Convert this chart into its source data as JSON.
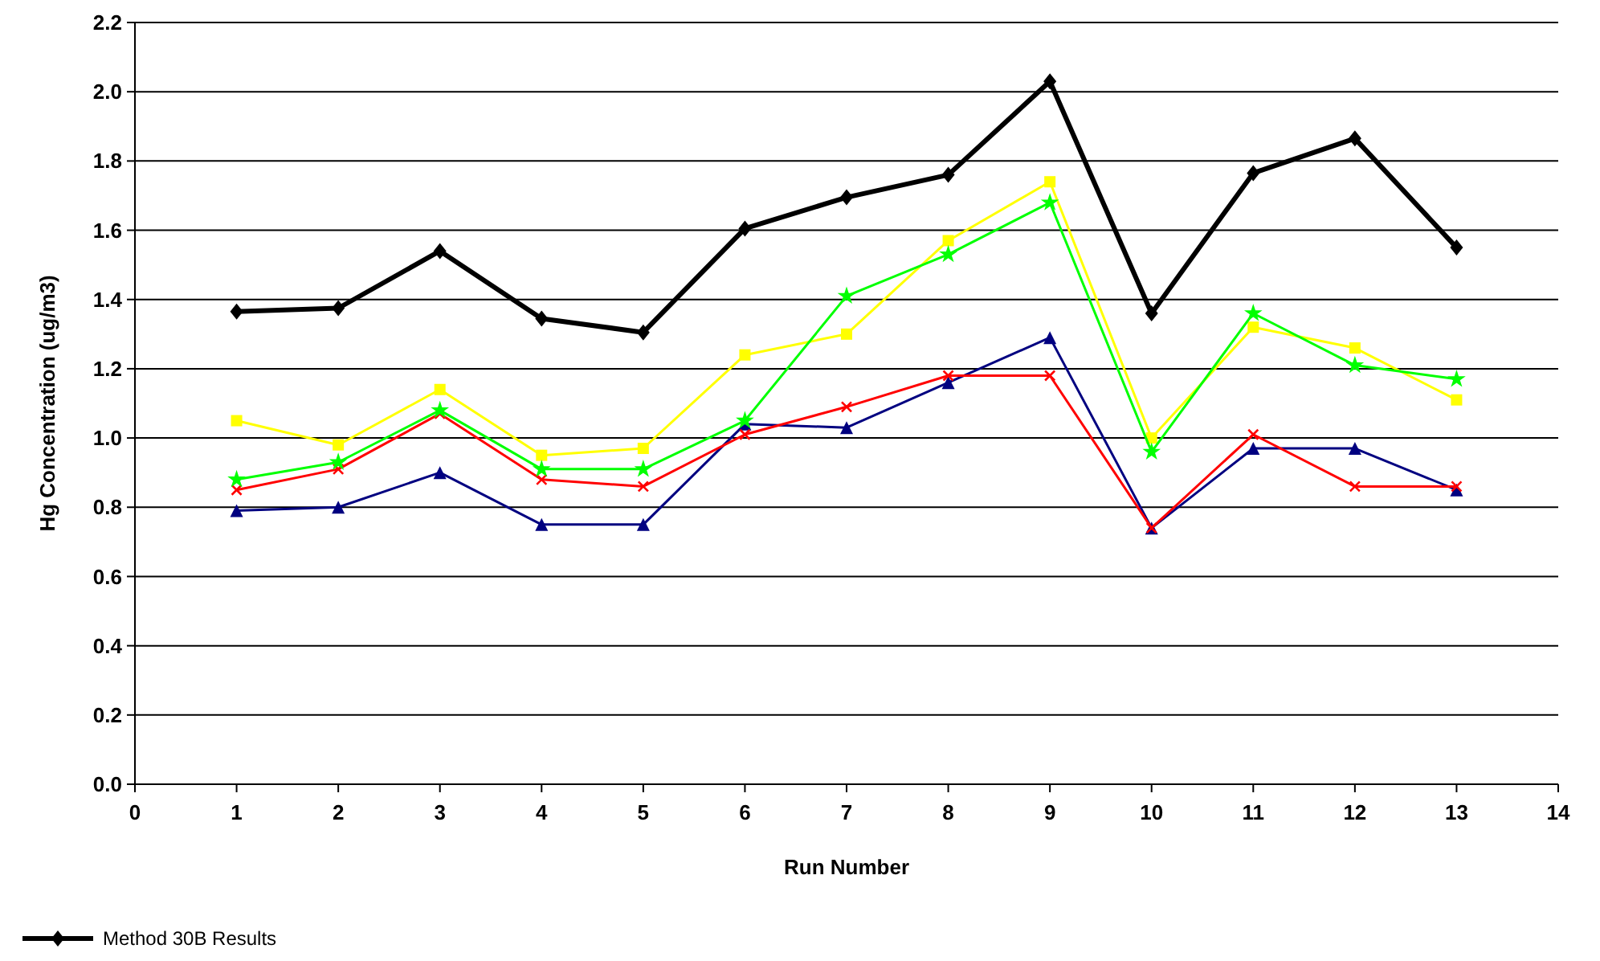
{
  "chart_data": {
    "type": "line",
    "xlabel": "Run Number",
    "ylabel": "Hg Concentration (ug/m3)",
    "x": [
      1,
      2,
      3,
      4,
      5,
      6,
      7,
      8,
      9,
      10,
      11,
      12,
      13
    ],
    "xlim": [
      0,
      14
    ],
    "xticks": [
      0,
      1,
      2,
      3,
      4,
      5,
      6,
      7,
      8,
      9,
      10,
      11,
      12,
      13,
      14
    ],
    "ylim": [
      0,
      2.2
    ],
    "yticks": [
      {
        "value": 0,
        "label": "0.0"
      },
      {
        "value": 0.2,
        "label": "0.2"
      },
      {
        "value": 0.4,
        "label": "0.4"
      },
      {
        "value": 0.6,
        "label": "0.6"
      },
      {
        "value": 0.8,
        "label": "0.8"
      },
      {
        "value": 1,
        "label": "1.0"
      },
      {
        "value": 1.2,
        "label": "1.2"
      },
      {
        "value": 1.4,
        "label": "1.4"
      },
      {
        "value": 1.6,
        "label": "1.6"
      },
      {
        "value": 1.8,
        "label": "1.8"
      },
      {
        "value": 2,
        "label": "2.0"
      },
      {
        "value": 2.2,
        "label": "2.2"
      }
    ],
    "grid": "y",
    "legend": "bottom",
    "series": [
      {
        "name": "Method 30B Results",
        "color": "#000000",
        "marker": "diamond",
        "values": [
          1.365,
          1.375,
          1.54,
          1.345,
          1.305,
          1.605,
          1.695,
          1.76,
          2.03,
          1.36,
          1.765,
          1.865,
          1.55
        ]
      },
      {
        "color": "#000080",
        "marker": "triangle",
        "values": [
          0.79,
          0.8,
          0.9,
          0.75,
          0.75,
          1.04,
          1.03,
          1.16,
          1.29,
          0.74,
          0.97,
          0.97,
          0.85
        ]
      },
      {
        "color": "#ffff00",
        "marker": "square",
        "values": [
          1.05,
          0.98,
          1.14,
          0.95,
          0.97,
          1.24,
          1.3,
          1.57,
          1.74,
          1.0,
          1.32,
          1.26,
          1.11
        ]
      },
      {
        "color": "#ff0000",
        "marker": "cross",
        "values": [
          0.85,
          0.91,
          1.07,
          0.88,
          0.86,
          1.01,
          1.09,
          1.18,
          1.18,
          0.74,
          1.01,
          0.86,
          0.86
        ]
      },
      {
        "color": "#00ff00",
        "marker": "star",
        "values": [
          0.88,
          0.93,
          1.08,
          0.91,
          0.91,
          1.05,
          1.41,
          1.53,
          1.68,
          0.96,
          1.36,
          1.21,
          1.17
        ]
      }
    ]
  }
}
